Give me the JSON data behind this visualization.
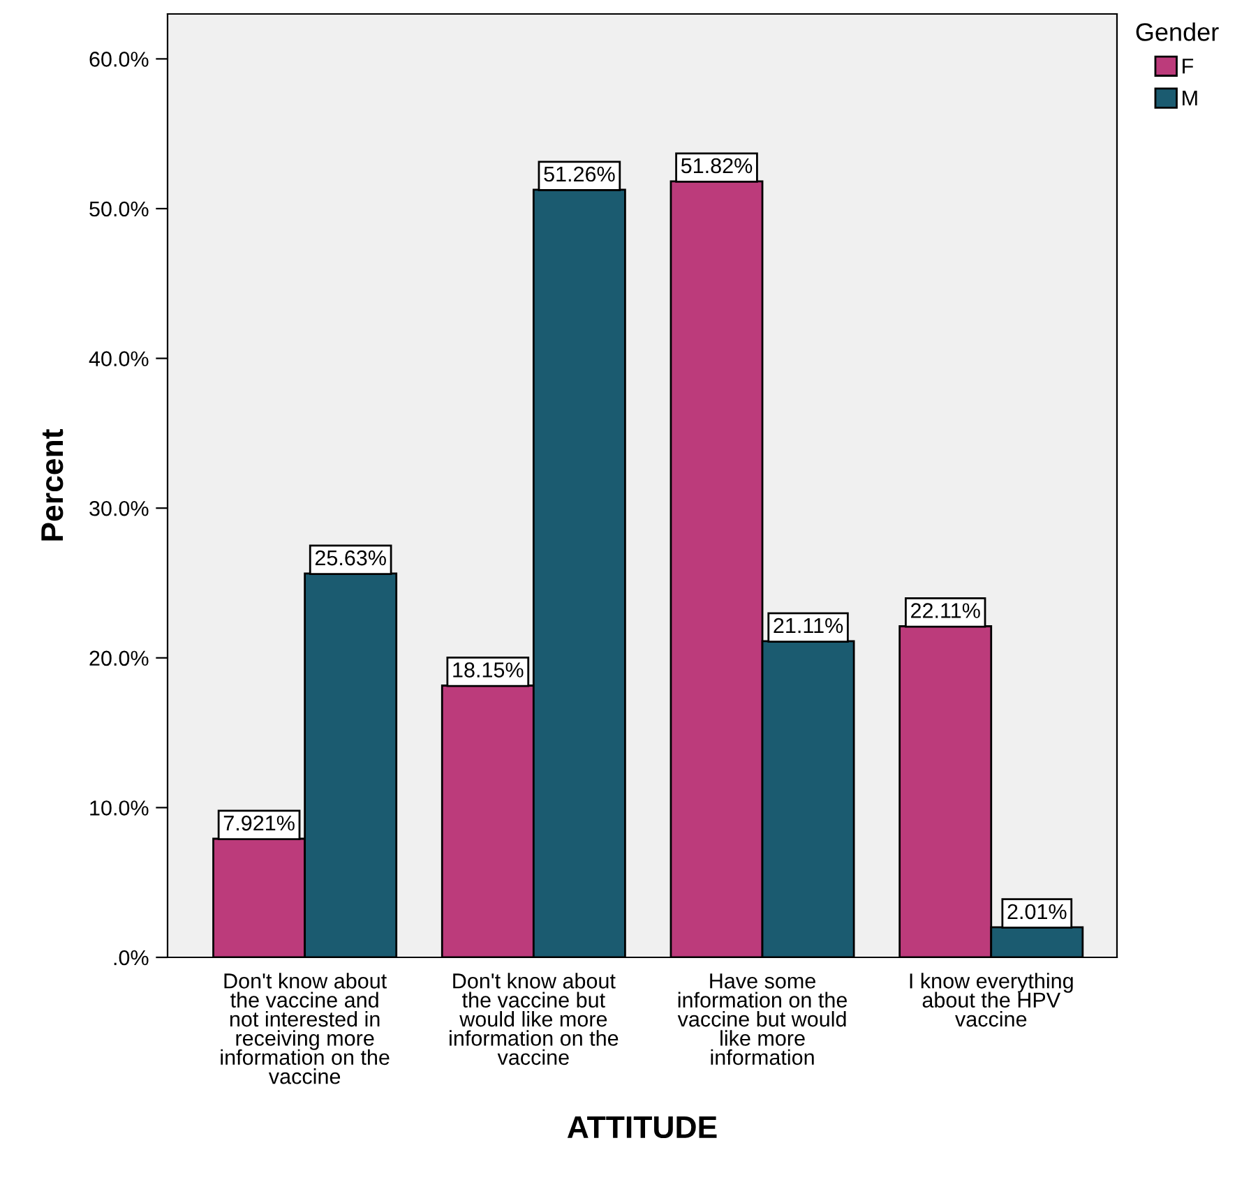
{
  "chart_data": {
    "type": "bar",
    "xlabel": "ATTITUDE",
    "ylabel": "Percent",
    "legend_title": "Gender",
    "legend": "top right",
    "grid": false,
    "categories": [
      "Don't know about\nthe vaccine and\nnot interested in\nreceiving more\ninformation on the\nvaccine",
      "Don't know about\nthe vaccine but\nwould like more\ninformation on the\nvaccine",
      "Have some\ninformation on the\nvaccine but would\nlike more\ninformation",
      "I know everything\nabout the HPV\nvaccine"
    ],
    "series": [
      {
        "name": "F",
        "color": "#bc3b7b",
        "values": [
          7.921,
          18.15,
          51.82,
          22.11
        ],
        "value_labels": [
          "7.921%",
          "18.15%",
          "51.82%",
          "22.11%"
        ]
      },
      {
        "name": "M",
        "color": "#1b5b70",
        "values": [
          25.63,
          51.26,
          21.11,
          2.01
        ],
        "value_labels": [
          "25.63%",
          "51.26%",
          "21.11%",
          "2.01%"
        ]
      }
    ],
    "ylim": [
      0,
      63
    ],
    "yticks": [
      {
        "value": 0,
        "label": ".0%"
      },
      {
        "value": 10,
        "label": "10.0%"
      },
      {
        "value": 20,
        "label": "20.0%"
      },
      {
        "value": 30,
        "label": "30.0%"
      },
      {
        "value": 40,
        "label": "40.0%"
      },
      {
        "value": 50,
        "label": "50.0%"
      },
      {
        "value": 60,
        "label": "60.0%"
      }
    ]
  }
}
